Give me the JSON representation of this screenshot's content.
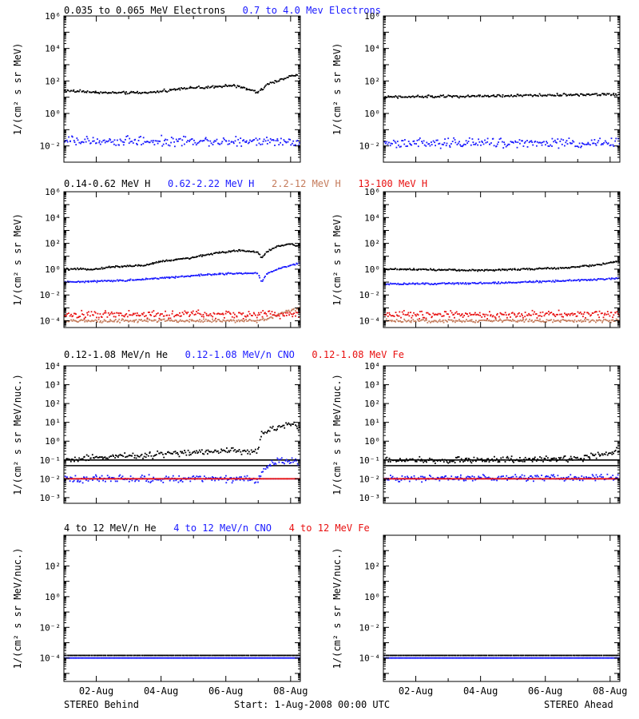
{
  "footer": {
    "left": "STEREO Behind",
    "center": "Start:  1-Aug-2008 00:00 UTC",
    "right": "STEREO Ahead"
  },
  "x_ticks": [
    "02-Aug",
    "04-Aug",
    "06-Aug",
    "08-Aug"
  ],
  "colors": {
    "black": "#000000",
    "blue": "#1a1aff",
    "brown": "#c47a5a",
    "red": "#e81010"
  },
  "chart_data": [
    {
      "type": "scatter",
      "spacecraft": "STEREO Behind",
      "legend": [
        {
          "text": "0.035 to 0.065 MeV Electrons",
          "color": "black"
        },
        {
          "text": "0.7 to 4.0 Mev Electrons",
          "color": "blue"
        }
      ],
      "ylabel": "1/(cm² s sr MeV)",
      "yscale": "log",
      "ylim": [
        0.001,
        1000000
      ],
      "yticks": [
        {
          "v": 0.01,
          "label": "10⁻²"
        },
        {
          "v": 1,
          "label": "10⁰"
        },
        {
          "v": 100,
          "label": "10²"
        },
        {
          "v": 10000,
          "label": "10⁴"
        },
        {
          "v": 1000000,
          "label": "10⁶"
        }
      ],
      "xlim_days": [
        0,
        7.3
      ],
      "series": [
        {
          "color": "black",
          "spread": 0.1,
          "x": [
            0,
            1.5,
            2.8,
            3.6,
            4.5,
            5.2,
            6.0,
            6.3,
            6.6,
            7.0,
            7.2,
            7.3
          ],
          "y": [
            25,
            18,
            20,
            35,
            40,
            55,
            20,
            60,
            100,
            200,
            250,
            80
          ]
        },
        {
          "color": "blue",
          "spread": 0.35,
          "x": [
            0,
            7.3
          ],
          "y": [
            0.02,
            0.02
          ]
        }
      ]
    },
    {
      "type": "scatter",
      "spacecraft": "STEREO Ahead",
      "ylabel": "1/(cm² s sr MeV)",
      "yscale": "log",
      "ylim": [
        0.001,
        1000000
      ],
      "yticks": [
        {
          "v": 0.01,
          "label": "10⁻²"
        },
        {
          "v": 1,
          "label": "10⁰"
        },
        {
          "v": 100,
          "label": "10²"
        },
        {
          "v": 10000,
          "label": "10⁴"
        },
        {
          "v": 1000000,
          "label": "10⁶"
        }
      ],
      "xlim_days": [
        0,
        7.3
      ],
      "series": [
        {
          "color": "black",
          "spread": 0.1,
          "x": [
            0,
            3.5,
            7.3
          ],
          "y": [
            10,
            12,
            15
          ]
        },
        {
          "color": "blue",
          "spread": 0.35,
          "x": [
            0,
            7.3
          ],
          "y": [
            0.015,
            0.015
          ]
        }
      ]
    },
    {
      "type": "scatter",
      "spacecraft": "STEREO Behind",
      "legend": [
        {
          "text": "0.14-0.62 MeV H",
          "color": "black"
        },
        {
          "text": "0.62-2.22 MeV H",
          "color": "blue"
        },
        {
          "text": "2.2-12 MeV H",
          "color": "brown"
        },
        {
          "text": "13-100 MeV H",
          "color": "red"
        }
      ],
      "ylabel": "1/(cm² s sr MeV)",
      "yscale": "log",
      "ylim": [
        3e-05,
        1000000
      ],
      "yticks": [
        {
          "v": 0.0001,
          "label": "10⁻⁴"
        },
        {
          "v": 0.01,
          "label": "10⁻²"
        },
        {
          "v": 1,
          "label": "10⁰"
        },
        {
          "v": 100,
          "label": "10²"
        },
        {
          "v": 10000,
          "label": "10⁴"
        },
        {
          "v": 1000000,
          "label": "10⁶"
        }
      ],
      "xlim_days": [
        0,
        7.3
      ],
      "series": [
        {
          "color": "black",
          "spread": 0.08,
          "x": [
            0,
            1.0,
            1.5,
            2.5,
            3.0,
            4.0,
            4.5,
            5.5,
            6.0,
            6.1,
            6.3,
            6.6,
            7.0,
            7.3
          ],
          "y": [
            1,
            1,
            1.5,
            2,
            4,
            8,
            15,
            30,
            20,
            8,
            25,
            60,
            90,
            60
          ]
        },
        {
          "color": "blue",
          "spread": 0.08,
          "x": [
            0,
            1.5,
            3.0,
            4.5,
            6.0,
            6.1,
            6.3,
            6.6,
            7.0,
            7.3
          ],
          "y": [
            0.1,
            0.12,
            0.2,
            0.4,
            0.5,
            0.1,
            0.5,
            1.0,
            2.0,
            3.0
          ]
        },
        {
          "color": "brown",
          "spread": 0.15,
          "x": [
            0,
            6.0,
            6.3,
            6.8,
            7.3
          ],
          "y": [
            0.0001,
            0.0001,
            0.00015,
            0.0005,
            0.001
          ]
        },
        {
          "color": "red",
          "spread": 0.35,
          "x": [
            0,
            7.3
          ],
          "y": [
            0.0003,
            0.0003
          ]
        }
      ]
    },
    {
      "type": "scatter",
      "spacecraft": "STEREO Ahead",
      "ylabel": "1/(cm² s sr MeV)",
      "yscale": "log",
      "ylim": [
        3e-05,
        1000000
      ],
      "yticks": [
        {
          "v": 0.0001,
          "label": "10⁻⁴"
        },
        {
          "v": 0.01,
          "label": "10⁻²"
        },
        {
          "v": 1,
          "label": "10⁰"
        },
        {
          "v": 100,
          "label": "10²"
        },
        {
          "v": 10000,
          "label": "10⁴"
        },
        {
          "v": 1000000,
          "label": "10⁶"
        }
      ],
      "xlim_days": [
        0,
        7.3
      ],
      "series": [
        {
          "color": "black",
          "spread": 0.08,
          "x": [
            0,
            3.0,
            5.5,
            6.5,
            7.3
          ],
          "y": [
            1,
            0.8,
            1.2,
            2.0,
            4.0
          ]
        },
        {
          "color": "blue",
          "spread": 0.08,
          "x": [
            0,
            3.0,
            5.5,
            7.3
          ],
          "y": [
            0.07,
            0.08,
            0.12,
            0.2
          ]
        },
        {
          "color": "brown",
          "spread": 0.15,
          "x": [
            0,
            7.3
          ],
          "y": [
            0.0001,
            0.0001
          ]
        },
        {
          "color": "red",
          "spread": 0.35,
          "x": [
            0,
            7.3
          ],
          "y": [
            0.0003,
            0.0003
          ]
        }
      ]
    },
    {
      "type": "scatter",
      "spacecraft": "STEREO Behind",
      "legend": [
        {
          "text": "0.12-1.08 MeV/n He",
          "color": "black"
        },
        {
          "text": "0.12-1.08 MeV/n CNO",
          "color": "blue"
        },
        {
          "text": "0.12-1.08 MeV Fe",
          "color": "red"
        }
      ],
      "ylabel": "1/(cm² s sr MeV/nuc.)",
      "yscale": "log",
      "ylim": [
        0.0005,
        10000
      ],
      "yticks": [
        {
          "v": 0.001,
          "label": "10⁻³"
        },
        {
          "v": 0.01,
          "label": "10⁻²"
        },
        {
          "v": 0.1,
          "label": "10⁻¹"
        },
        {
          "v": 1,
          "label": "10⁰"
        },
        {
          "v": 10,
          "label": "10¹"
        },
        {
          "v": 100,
          "label": "10²"
        },
        {
          "v": 1000,
          "label": "10³"
        },
        {
          "v": 10000,
          "label": "10⁴"
        }
      ],
      "xlim_days": [
        0,
        7.3
      ],
      "series": [
        {
          "color": "black",
          "spread": 0.2,
          "x": [
            0,
            1.5,
            3.0,
            4.5,
            6.0,
            6.1,
            6.3,
            6.6,
            7.0,
            7.3
          ],
          "y": [
            0.1,
            0.15,
            0.2,
            0.3,
            0.3,
            2,
            4,
            6,
            10,
            5
          ]
        },
        {
          "color": "blue",
          "spread": 0.25,
          "x": [
            0,
            6.0,
            6.3,
            6.6,
            7.3
          ],
          "y": [
            0.01,
            0.01,
            0.05,
            0.1,
            0.08
          ]
        },
        {
          "color": "red",
          "spread": 0.0,
          "x": [
            0,
            7.3
          ],
          "y": [
            0.01,
            0.01
          ]
        }
      ],
      "levels": [
        {
          "color": "black",
          "y": 0.05
        },
        {
          "color": "black",
          "y": 0.1
        },
        {
          "color": "blue",
          "y": 0.01
        }
      ]
    },
    {
      "type": "scatter",
      "spacecraft": "STEREO Ahead",
      "ylabel": "1/(cm² s sr MeV/nuc.)",
      "yscale": "log",
      "ylim": [
        0.0005,
        10000
      ],
      "yticks": [
        {
          "v": 0.001,
          "label": "10⁻³"
        },
        {
          "v": 0.01,
          "label": "10⁻²"
        },
        {
          "v": 0.1,
          "label": "10⁻¹"
        },
        {
          "v": 1,
          "label": "10⁰"
        },
        {
          "v": 10,
          "label": "10¹"
        },
        {
          "v": 100,
          "label": "10²"
        },
        {
          "v": 1000,
          "label": "10³"
        },
        {
          "v": 10000,
          "label": "10⁴"
        }
      ],
      "xlim_days": [
        0,
        7.3
      ],
      "series": [
        {
          "color": "black",
          "spread": 0.2,
          "x": [
            0,
            3.0,
            6.0,
            6.8,
            7.3
          ],
          "y": [
            0.1,
            0.1,
            0.12,
            0.2,
            0.35
          ]
        },
        {
          "color": "blue",
          "spread": 0.2,
          "x": [
            0,
            7.3
          ],
          "y": [
            0.01,
            0.012
          ]
        },
        {
          "color": "red",
          "spread": 0.0,
          "x": [
            0,
            7.3
          ],
          "y": [
            0.01,
            0.01
          ]
        }
      ],
      "levels": [
        {
          "color": "black",
          "y": 0.05
        },
        {
          "color": "black",
          "y": 0.1
        },
        {
          "color": "blue",
          "y": 0.01
        }
      ]
    },
    {
      "type": "scatter",
      "spacecraft": "STEREO Behind",
      "legend": [
        {
          "text": "4 to 12 MeV/n He",
          "color": "black"
        },
        {
          "text": "4 to 12 MeV/n CNO",
          "color": "blue"
        },
        {
          "text": "4 to 12 MeV Fe",
          "color": "red"
        }
      ],
      "ylabel": "1/(cm² s sr MeV/nuc.)",
      "yscale": "log",
      "ylim": [
        3e-06,
        10000
      ],
      "yticks": [
        {
          "v": 0.0001,
          "label": "10⁻⁴"
        },
        {
          "v": 0.01,
          "label": "10⁻²"
        },
        {
          "v": 1,
          "label": "10⁰"
        },
        {
          "v": 100,
          "label": "10²"
        }
      ],
      "xlim_days": [
        0,
        7.3
      ],
      "series": [
        {
          "color": "black",
          "spread": 0.0,
          "x": [
            0,
            7.3
          ],
          "y": [
            0.00015,
            0.00015
          ]
        },
        {
          "color": "blue",
          "spread": 0.0,
          "x": [
            0,
            7.3
          ],
          "y": [
            0.0001,
            0.0001
          ]
        }
      ],
      "levels": [
        {
          "color": "blue",
          "y": 0.0001
        }
      ]
    },
    {
      "type": "scatter",
      "spacecraft": "STEREO Ahead",
      "ylabel": "1/(cm² s sr MeV/nuc.)",
      "yscale": "log",
      "ylim": [
        3e-06,
        10000
      ],
      "yticks": [
        {
          "v": 0.0001,
          "label": "10⁻⁴"
        },
        {
          "v": 0.01,
          "label": "10⁻²"
        },
        {
          "v": 1,
          "label": "10⁰"
        },
        {
          "v": 100,
          "label": "10²"
        }
      ],
      "xlim_days": [
        0,
        7.3
      ],
      "series": [
        {
          "color": "black",
          "spread": 0.0,
          "x": [
            0,
            7.3
          ],
          "y": [
            0.00015,
            0.00015
          ]
        },
        {
          "color": "blue",
          "spread": 0.0,
          "x": [
            0,
            7.3
          ],
          "y": [
            0.0001,
            0.0001
          ]
        }
      ],
      "levels": [
        {
          "color": "blue",
          "y": 0.0001
        }
      ]
    }
  ]
}
